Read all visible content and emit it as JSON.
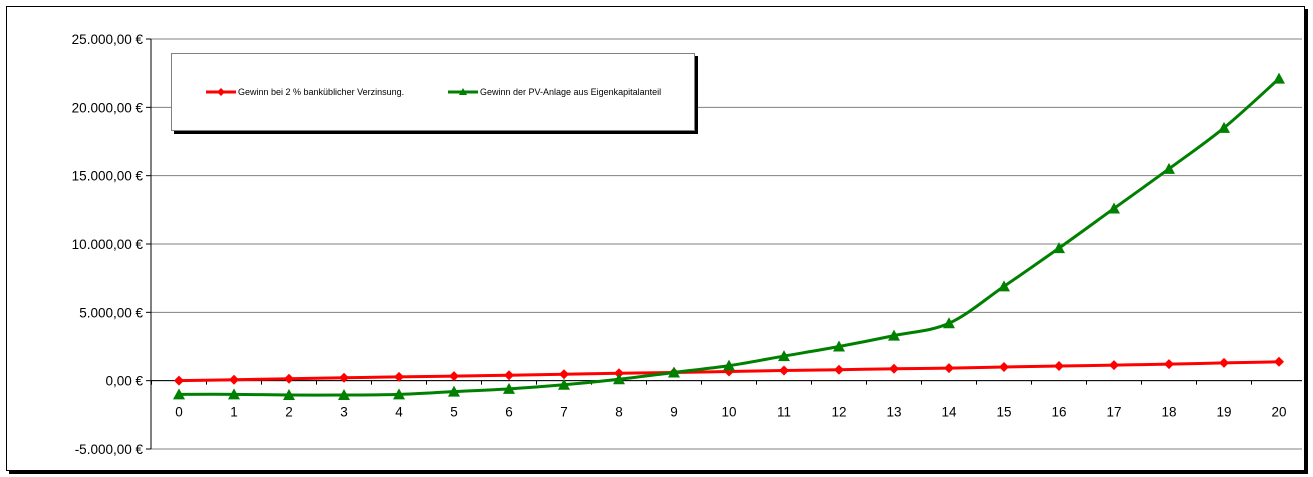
{
  "chart_data": {
    "type": "line",
    "title": "",
    "xlabel": "",
    "ylabel": "",
    "x": [
      0,
      1,
      2,
      3,
      4,
      5,
      6,
      7,
      8,
      9,
      10,
      11,
      12,
      13,
      14,
      15,
      16,
      17,
      18,
      19,
      20
    ],
    "ylim": [
      -5000,
      25000
    ],
    "yticks": [
      -5000,
      0,
      5000,
      10000,
      15000,
      20000,
      25000
    ],
    "ytick_labels": [
      "-5.000,00 €",
      "0,00 €",
      "5.000,00 €",
      "10.000,00 €",
      "15.000,00 €",
      "20.000,00 €",
      "25.000,00 €"
    ],
    "xtick_labels": [
      "0",
      "1",
      "2",
      "3",
      "4",
      "5",
      "6",
      "7",
      "8",
      "9",
      "10",
      "11",
      "12",
      "13",
      "14",
      "15",
      "16",
      "17",
      "18",
      "19",
      "20"
    ],
    "grid": "horizontal",
    "legend_position": "top-left",
    "series": [
      {
        "name": "Gewinn bei 2 % banküblicher Verzinsung.",
        "color": "#ff0000",
        "marker": "diamond",
        "values": [
          0,
          70,
          140,
          210,
          280,
          330,
          400,
          470,
          540,
          600,
          670,
          740,
          800,
          870,
          920,
          1000,
          1070,
          1140,
          1210,
          1300,
          1380
        ]
      },
      {
        "name": "Gewinn der PV-Anlage aus Eigenkapitalanteil",
        "color": "#008000",
        "marker": "triangle",
        "values": [
          -1000,
          -1000,
          -1050,
          -1050,
          -1000,
          -800,
          -600,
          -300,
          100,
          600,
          1100,
          1800,
          2500,
          3300,
          4200,
          6900,
          9700,
          12600,
          15500,
          18500,
          22100
        ]
      }
    ]
  }
}
